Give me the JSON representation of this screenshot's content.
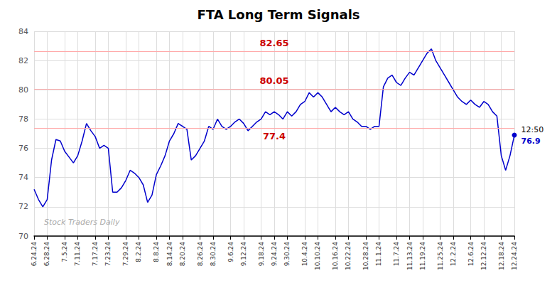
{
  "chart_data": {
    "type": "line",
    "title": "FTA Long Term Signals",
    "categories": [
      "6.24.24",
      null,
      null,
      "6.28.24",
      null,
      null,
      null,
      "7.5.24",
      null,
      null,
      "7.11.24",
      null,
      null,
      null,
      "7.17.24",
      null,
      null,
      "7.23.24",
      null,
      null,
      null,
      "7.29.24",
      null,
      null,
      "8.2.24",
      null,
      null,
      null,
      "8.8.24",
      null,
      null,
      "8.14.24",
      null,
      null,
      "8.20.24",
      null,
      null,
      null,
      "8.26.24",
      null,
      null,
      "8.30.24",
      null,
      null,
      null,
      "9.6.24",
      null,
      null,
      "9.12.24",
      null,
      null,
      null,
      "9.18.24",
      null,
      null,
      "9.24.24",
      null,
      null,
      "9.30.24",
      null,
      null,
      null,
      "10.4.24",
      null,
      null,
      "10.10.24",
      null,
      null,
      null,
      "10.16.24",
      null,
      null,
      "10.22.24",
      null,
      null,
      null,
      "10.28.24",
      null,
      null,
      "11.1.24",
      null,
      null,
      null,
      "11.7.24",
      null,
      null,
      "11.13.24",
      null,
      null,
      "11.19.24",
      null,
      null,
      null,
      "11.25.24",
      null,
      null,
      "12.2.24",
      null,
      null,
      null,
      "12.6.24",
      null,
      null,
      "12.12.24",
      null,
      null,
      null,
      "12.18.24",
      null,
      null,
      "12.24.24"
    ],
    "values": [
      73.2,
      72.5,
      72.0,
      72.5,
      75.2,
      76.6,
      76.5,
      75.8,
      75.4,
      75.0,
      75.5,
      76.5,
      77.7,
      77.2,
      76.8,
      76.0,
      76.2,
      76.0,
      73.0,
      73.0,
      73.3,
      73.8,
      74.5,
      74.3,
      74.0,
      73.5,
      72.3,
      72.8,
      74.2,
      74.8,
      75.5,
      76.5,
      77.0,
      77.7,
      77.5,
      77.3,
      75.2,
      75.5,
      76.0,
      76.5,
      77.5,
      77.3,
      78.0,
      77.5,
      77.3,
      77.5,
      77.8,
      78.0,
      77.7,
      77.2,
      77.5,
      77.8,
      78.0,
      78.5,
      78.3,
      78.5,
      78.3,
      78.0,
      78.5,
      78.2,
      78.5,
      79.0,
      79.2,
      79.8,
      79.5,
      79.8,
      79.5,
      79.0,
      78.5,
      78.8,
      78.5,
      78.3,
      78.5,
      78.0,
      77.8,
      77.5,
      77.5,
      77.3,
      77.5,
      77.5,
      80.2,
      80.8,
      81.0,
      80.5,
      80.3,
      80.8,
      81.2,
      81.0,
      81.5,
      82.0,
      82.5,
      82.8,
      82.0,
      81.5,
      81.0,
      80.5,
      80.0,
      79.5,
      79.2,
      79.0,
      79.3,
      79.0,
      78.8,
      79.2,
      79.0,
      78.5,
      78.2,
      75.5,
      74.5,
      75.5,
      76.9
    ],
    "color": "#0000cc",
    "ylim": [
      70,
      84
    ],
    "yticks": [
      70,
      72,
      74,
      76,
      78,
      80,
      82,
      84
    ],
    "grid": true,
    "hlines": [
      {
        "y": 82.65,
        "color": "#ffaaaa"
      },
      {
        "y": 80.05,
        "color": "#ffaaaa"
      },
      {
        "y": 77.4,
        "color": "#ffaaaa"
      }
    ],
    "annotations": [
      {
        "text": "82.65",
        "y": 82.65,
        "color": "#cc0000"
      },
      {
        "text": "80.05",
        "y": 80.05,
        "color": "#cc0000"
      },
      {
        "text": "77.4",
        "y": 77.4,
        "color": "#cc0000"
      }
    ],
    "end_annotation": {
      "time": "12:50",
      "value": "76.9"
    },
    "watermark": "Stock Traders Daily"
  }
}
